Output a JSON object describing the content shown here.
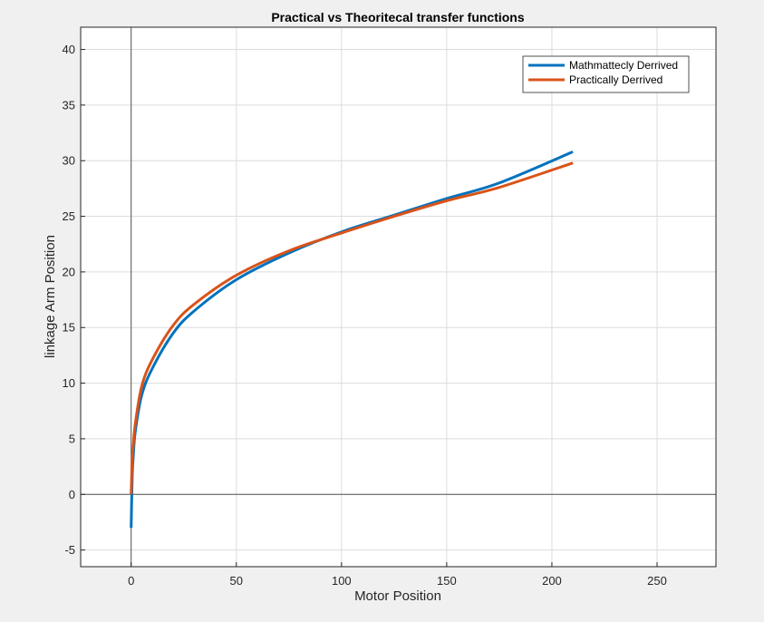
{
  "chart_data": {
    "type": "line",
    "title": "Practical vs Theoritecal transfer functions",
    "xlabel": "Motor Position",
    "ylabel": "linkage Arm Position",
    "xlim": [
      -24,
      278
    ],
    "ylim": [
      -6.5,
      42
    ],
    "xticks": [
      0,
      50,
      100,
      150,
      200,
      250
    ],
    "yticks": [
      -5,
      0,
      5,
      10,
      15,
      20,
      25,
      30,
      35,
      40
    ],
    "grid": true,
    "zero_lines": true,
    "legend_position": "top-right",
    "series": [
      {
        "name": "Mathmattecly Derrived",
        "color": "#0072BD",
        "x": [
          0,
          0.5,
          1,
          2,
          5,
          10,
          20,
          30,
          50,
          75,
          100,
          125,
          150,
          175,
          210
        ],
        "y": [
          -3,
          1.6,
          3.4,
          5.7,
          8.9,
          11.3,
          14.5,
          16.5,
          19.3,
          21.7,
          23.6,
          25.1,
          26.6,
          28.0,
          30.8
        ]
      },
      {
        "name": "Practically Derrived",
        "color": "#D95319",
        "x": [
          0,
          0.5,
          1,
          2,
          5,
          10,
          20,
          30,
          50,
          75,
          100,
          125,
          150,
          175,
          210
        ],
        "y": [
          0,
          3.1,
          4.4,
          6.4,
          9.7,
          12.1,
          15.2,
          17.1,
          19.7,
          21.9,
          23.5,
          25.0,
          26.4,
          27.6,
          29.8
        ]
      }
    ]
  }
}
